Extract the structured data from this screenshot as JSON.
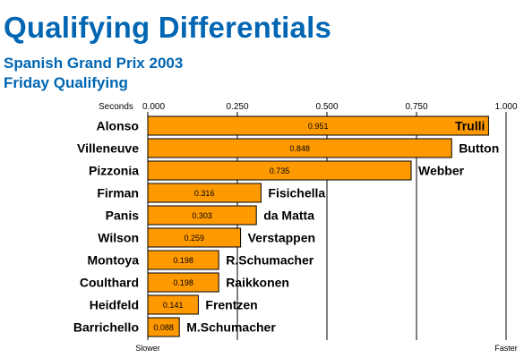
{
  "header": {
    "title": "Qualifying Differentials",
    "subtitle1": "Spanish Grand Prix 2003",
    "subtitle2": "Friday Qualifying"
  },
  "chart_data": {
    "type": "bar",
    "orientation": "horizontal",
    "axis_unit_label": "Seconds",
    "xlim": [
      0,
      1
    ],
    "xticks": [
      "0.000",
      "0.250",
      "0.500",
      "0.750",
      "1.000"
    ],
    "xtick_values": [
      0,
      0.25,
      0.5,
      0.75,
      1.0
    ],
    "left_end_label": "Slower",
    "right_end_label": "Faster",
    "grid": "vertical",
    "bar_color": "#ff9900",
    "categories": [
      "Alonso",
      "Villeneuve",
      "Pizzonia",
      "Firman",
      "Panis",
      "Wilson",
      "Montoya",
      "Coulthard",
      "Heidfeld",
      "Barrichello"
    ],
    "right_labels": [
      "Trulli",
      "Button",
      "Webber",
      "Fisichella",
      "da Matta",
      "Verstappen",
      "R.Schumacher",
      "Raikkonen",
      "Frentzen",
      "M.Schumacher"
    ],
    "values": [
      0.951,
      0.848,
      0.735,
      0.316,
      0.303,
      0.259,
      0.198,
      0.198,
      0.141,
      0.088
    ],
    "value_labels": [
      "0.951",
      "0.848",
      "0.735",
      "0.316",
      "0.303",
      "0.259",
      "0.198",
      "0.198",
      "0.141",
      "0.088"
    ]
  }
}
